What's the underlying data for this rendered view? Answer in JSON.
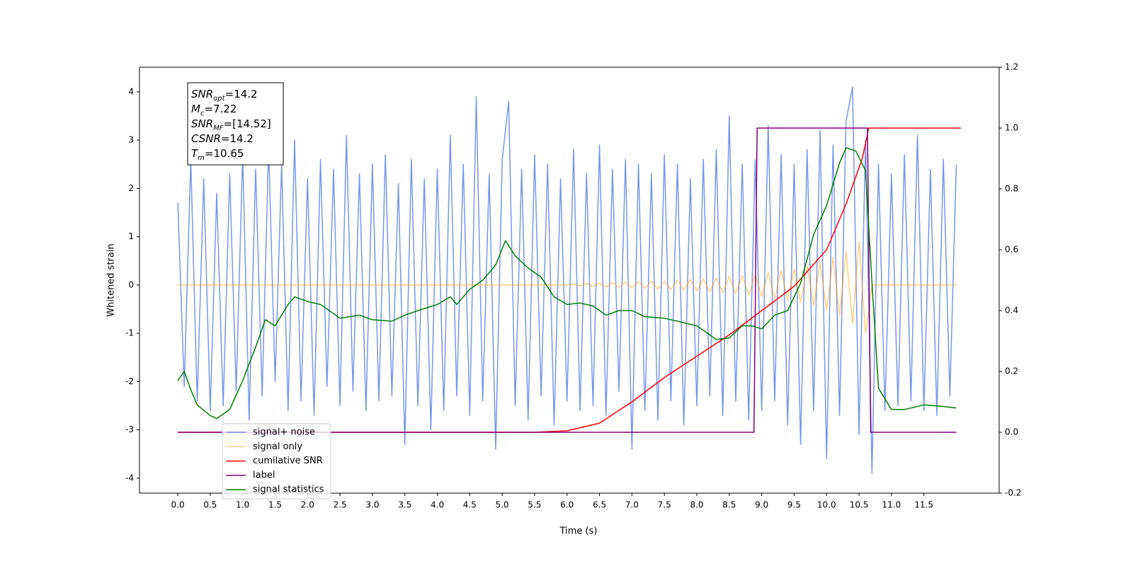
{
  "chart_data": {
    "type": "line",
    "x_label": "Time (s)",
    "y_label": "Whitened strain",
    "xlim": [
      -0.59,
      12.66
    ],
    "ylim": [
      -4.31,
      4.51
    ],
    "y2lim": [
      -0.2,
      1.2
    ],
    "xticks": [
      {
        "value": 0,
        "label": "0.0"
      },
      0.5,
      {
        "value": 1,
        "label": "1.0"
      },
      1.5,
      {
        "value": 2,
        "label": "2.0"
      },
      2.5,
      {
        "value": 3,
        "label": "3.0"
      },
      3.5,
      {
        "value": 4,
        "label": "4.0"
      },
      4.5,
      {
        "value": 5,
        "label": "5.0"
      },
      5.5,
      {
        "value": 6,
        "label": "6.0"
      },
      6.5,
      {
        "value": 7,
        "label": "7.0"
      },
      7.5,
      {
        "value": 8,
        "label": "8.0"
      },
      8.5,
      {
        "value": 9,
        "label": "9.0"
      },
      9.5,
      {
        "value": 10,
        "label": "10.0"
      },
      10.5,
      {
        "value": 11,
        "label": "11.0"
      },
      11.5
    ],
    "yticks": [
      -4,
      -3,
      -2,
      -1,
      0,
      1,
      2,
      3,
      4
    ],
    "y2ticks": [
      -0.2,
      {
        "value": 0,
        "label": "0.0"
      },
      0.2,
      0.4,
      0.6,
      0.8,
      {
        "value": 1,
        "label": "1.0"
      },
      1.2
    ],
    "annotation": [
      {
        "symbol": "SNR",
        "subscript": "opt",
        "text": "=14.2"
      },
      {
        "symbol": "M",
        "subscript": "c",
        "text": "=7.22"
      },
      {
        "symbol": "SNR",
        "subscript": "MF",
        "text": "=[14.52]"
      },
      {
        "symbol": "CSNR",
        "subscript": null,
        "text": "=14.2"
      },
      {
        "symbol": "T",
        "subscript": "m",
        "text": "=10.65"
      }
    ],
    "x": [
      0,
      0.1,
      0.2,
      0.3,
      0.4,
      0.5,
      0.6,
      0.7,
      0.8,
      0.9,
      1,
      1.1,
      1.2,
      1.3,
      1.4,
      1.5,
      1.6,
      1.7,
      1.8,
      1.9,
      2,
      2.1,
      2.2,
      2.3,
      2.4,
      2.5,
      2.6,
      2.7,
      2.8,
      2.9,
      3,
      3.1,
      3.2,
      3.3,
      3.4,
      3.5,
      3.6,
      3.7,
      3.8,
      3.9,
      4,
      4.1,
      4.2,
      4.3,
      4.4,
      4.5,
      4.6,
      4.7,
      4.8,
      4.9,
      5,
      5.1,
      5.2,
      5.3,
      5.4,
      5.5,
      5.6,
      5.7,
      5.8,
      5.9,
      6,
      6.1,
      6.2,
      6.3,
      6.4,
      6.5,
      6.6,
      6.7,
      6.8,
      6.9,
      7,
      7.1,
      7.2,
      7.3,
      7.4,
      7.5,
      7.6,
      7.7,
      7.8,
      7.9,
      8,
      8.1,
      8.2,
      8.3,
      8.4,
      8.5,
      8.6,
      8.7,
      8.8,
      8.9,
      9,
      9.1,
      9.2,
      9.3,
      9.4,
      9.5,
      9.6,
      9.7,
      9.8,
      9.9,
      10,
      10.1,
      10.2,
      10.3,
      10.4,
      10.5,
      10.6,
      10.7,
      10.8,
      10.9,
      11,
      11.1,
      11.2,
      11.3,
      11.4,
      11.5,
      11.6,
      11.7,
      11.8,
      11.9,
      12
    ],
    "series": [
      {
        "name": "signal+ noise",
        "color": "#4169e1",
        "alpha": 0.7,
        "values": [
          1.7,
          -2.1,
          2.6,
          -2.4,
          2.2,
          -2.6,
          1.9,
          -2.5,
          2.3,
          -2.2,
          2.7,
          -2.8,
          2.4,
          -2.3,
          2.9,
          -2.0,
          2.5,
          -2.6,
          3.0,
          -2.4,
          2.2,
          -2.7,
          2.6,
          -2.1,
          2.4,
          -2.5,
          3.1,
          -2.2,
          2.3,
          -2.6,
          2.5,
          -2.4,
          2.7,
          -2.3,
          2.1,
          -3.3,
          2.6,
          -2.5,
          2.2,
          -3.0,
          2.4,
          -2.6,
          3.1,
          -2.3,
          2.5,
          -2.7,
          3.9,
          -2.4,
          2.3,
          -3.4,
          2.6,
          3.8,
          -2.5,
          2.4,
          -2.8,
          2.7,
          -2.3,
          2.5,
          -2.9,
          2.2,
          -2.4,
          2.8,
          -2.6,
          2.3,
          -2.5,
          2.9,
          -2.7,
          2.4,
          -2.2,
          2.6,
          -3.4,
          2.5,
          -2.6,
          2.3,
          -2.8,
          2.7,
          -2.4,
          2.5,
          -2.9,
          2.2,
          -2.5,
          2.6,
          -2.3,
          2.8,
          -2.7,
          3.5,
          -2.4,
          2.5,
          -2.8,
          2.6,
          -2.6,
          3.3,
          -2.4,
          2.7,
          -2.9,
          2.5,
          -3.3,
          2.8,
          -2.6,
          3.2,
          -3.6,
          2.9,
          -2.7,
          3.4,
          4.1,
          -3.1,
          3.0,
          -3.9,
          2.5,
          -2.6,
          2.3,
          -2.5,
          2.7,
          -2.4,
          3.1,
          -2.6,
          2.4,
          -2.7,
          2.6,
          -2.3,
          2.5
        ]
      },
      {
        "name": "signal only",
        "color": "#ffa500",
        "alpha": 0.5,
        "values": [
          0,
          0,
          0,
          0,
          0,
          0,
          0,
          0,
          0,
          0,
          0,
          0,
          0,
          0,
          0,
          0,
          0,
          0,
          0,
          0,
          0,
          0,
          0,
          0,
          0,
          0,
          0,
          0,
          0,
          0,
          0,
          0,
          0,
          0,
          0,
          0,
          0,
          0,
          0,
          0,
          0,
          0,
          0,
          0,
          0,
          0,
          0,
          0,
          0,
          0,
          0,
          0,
          0,
          0,
          0,
          0,
          0,
          0,
          0,
          0,
          0,
          0.02,
          -0.02,
          0.03,
          -0.03,
          0.04,
          -0.04,
          0.05,
          -0.05,
          0.06,
          -0.06,
          0.07,
          -0.07,
          0.08,
          -0.08,
          0.08,
          -0.09,
          0.1,
          -0.1,
          0.11,
          -0.12,
          0.13,
          -0.14,
          0.15,
          -0.16,
          0.17,
          -0.18,
          0.2,
          -0.21,
          0.22,
          -0.24,
          0.26,
          -0.28,
          0.3,
          -0.32,
          0.34,
          -0.37,
          0.4,
          -0.43,
          0.47,
          -0.52,
          0.57,
          -0.63,
          0.7,
          -0.8,
          0.9,
          -1.0,
          0,
          0,
          0,
          0,
          0,
          0,
          0,
          0,
          0,
          0,
          0,
          0,
          0,
          0
        ]
      },
      {
        "name": "cumilative SNR",
        "color": "#ff0000",
        "axis": "y2",
        "x": [
          0,
          5.5,
          6,
          6.5,
          7,
          7.5,
          8,
          8.5,
          9,
          9.5,
          10,
          10.3,
          10.55,
          10.65,
          12.07
        ],
        "values": [
          0,
          0,
          0.005,
          0.03,
          0.1,
          0.18,
          0.25,
          0.32,
          0.4,
          0.48,
          0.6,
          0.75,
          0.9,
          1,
          1
        ]
      },
      {
        "name": "label",
        "color": "#800080",
        "axis": "y2",
        "x": [
          0,
          8.88,
          8.93,
          10.63,
          10.68,
          12
        ],
        "values": [
          0,
          0,
          1,
          1,
          0,
          0
        ]
      },
      {
        "name": "signal statistics",
        "color": "#008000",
        "axis": "y2",
        "x": [
          0,
          0.1,
          0.2,
          0.3,
          0.5,
          0.6,
          0.8,
          1,
          1.2,
          1.35,
          1.5,
          1.7,
          1.8,
          2,
          2.2,
          2.3,
          2.5,
          2.8,
          3,
          3.3,
          3.5,
          3.7,
          4,
          4.2,
          4.3,
          4.5,
          4.7,
          4.9,
          5.05,
          5.2,
          5.4,
          5.6,
          5.8,
          6,
          6.2,
          6.4,
          6.6,
          6.8,
          7,
          7.2,
          7.5,
          7.7,
          8,
          8.3,
          8.5,
          8.7,
          8.85,
          9,
          9.2,
          9.4,
          9.6,
          9.8,
          10,
          10.2,
          10.3,
          10.45,
          10.6,
          10.7,
          10.8,
          11,
          11.2,
          11.5,
          11.8,
          12
        ],
        "values": [
          0.17,
          0.2,
          0.14,
          0.09,
          0.055,
          0.045,
          0.075,
          0.17,
          0.28,
          0.37,
          0.35,
          0.42,
          0.445,
          0.43,
          0.42,
          0.405,
          0.375,
          0.385,
          0.37,
          0.365,
          0.385,
          0.4,
          0.42,
          0.445,
          0.42,
          0.47,
          0.5,
          0.55,
          0.63,
          0.58,
          0.54,
          0.51,
          0.445,
          0.42,
          0.425,
          0.415,
          0.385,
          0.4,
          0.4,
          0.38,
          0.375,
          0.365,
          0.35,
          0.305,
          0.31,
          0.35,
          0.35,
          0.34,
          0.385,
          0.4,
          0.49,
          0.65,
          0.745,
          0.885,
          0.935,
          0.925,
          0.86,
          0.49,
          0.145,
          0.075,
          0.075,
          0.09,
          0.085,
          0.08
        ]
      }
    ]
  }
}
